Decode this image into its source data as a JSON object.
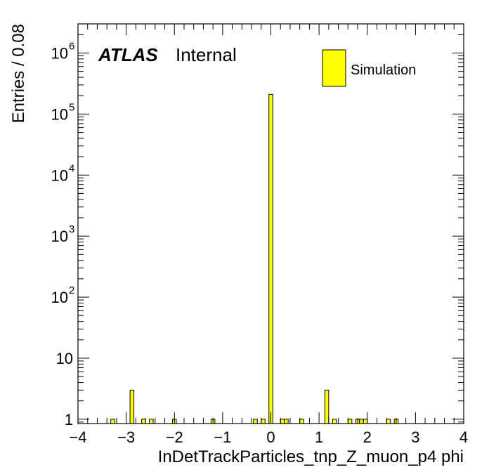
{
  "chart_data": {
    "type": "bar",
    "xlabel": "InDetTrackParticles_tnp_Z_muon_p4 phi",
    "ylabel": "Entries / 0.08",
    "xlim": [
      -4,
      4
    ],
    "ylim_log": [
      0.85,
      3000000
    ],
    "y_scale": "log",
    "x_ticks": [
      "−4",
      "−3",
      "−2",
      "−1",
      "0",
      "1",
      "2",
      "3",
      "4"
    ],
    "y_ticks": [
      {
        "value": 1,
        "base": "1",
        "exp": ""
      },
      {
        "value": 10,
        "base": "10",
        "exp": ""
      },
      {
        "value": 100,
        "base": "10",
        "exp": "2"
      },
      {
        "value": 1000,
        "base": "10",
        "exp": "3"
      },
      {
        "value": 10000,
        "base": "10",
        "exp": "4"
      },
      {
        "value": 100000,
        "base": "10",
        "exp": "5"
      },
      {
        "value": 1000000,
        "base": "10",
        "exp": "6"
      }
    ],
    "bin_width": 0.08,
    "bins": [
      {
        "x": -3.32,
        "y": 1
      },
      {
        "x": -2.92,
        "y": 3
      },
      {
        "x": -2.68,
        "y": 1
      },
      {
        "x": -2.52,
        "y": 1
      },
      {
        "x": -2.04,
        "y": 1
      },
      {
        "x": -1.24,
        "y": 1
      },
      {
        "x": -0.36,
        "y": 1
      },
      {
        "x": -0.2,
        "y": 1
      },
      {
        "x": -0.04,
        "y": 210000
      },
      {
        "x": 0.2,
        "y": 1
      },
      {
        "x": 0.28,
        "y": 1
      },
      {
        "x": 0.6,
        "y": 1
      },
      {
        "x": 1.12,
        "y": 3
      },
      {
        "x": 1.28,
        "y": 1
      },
      {
        "x": 1.6,
        "y": 1
      },
      {
        "x": 1.76,
        "y": 1
      },
      {
        "x": 1.84,
        "y": 1
      },
      {
        "x": 1.92,
        "y": 1
      },
      {
        "x": 2.4,
        "y": 1
      },
      {
        "x": 2.56,
        "y": 1
      }
    ],
    "legend": {
      "label": "Simulation",
      "placement": "top-right"
    },
    "series_color": "#ffff00",
    "annotation": {
      "experiment": "ATLAS",
      "status": "Internal"
    }
  }
}
